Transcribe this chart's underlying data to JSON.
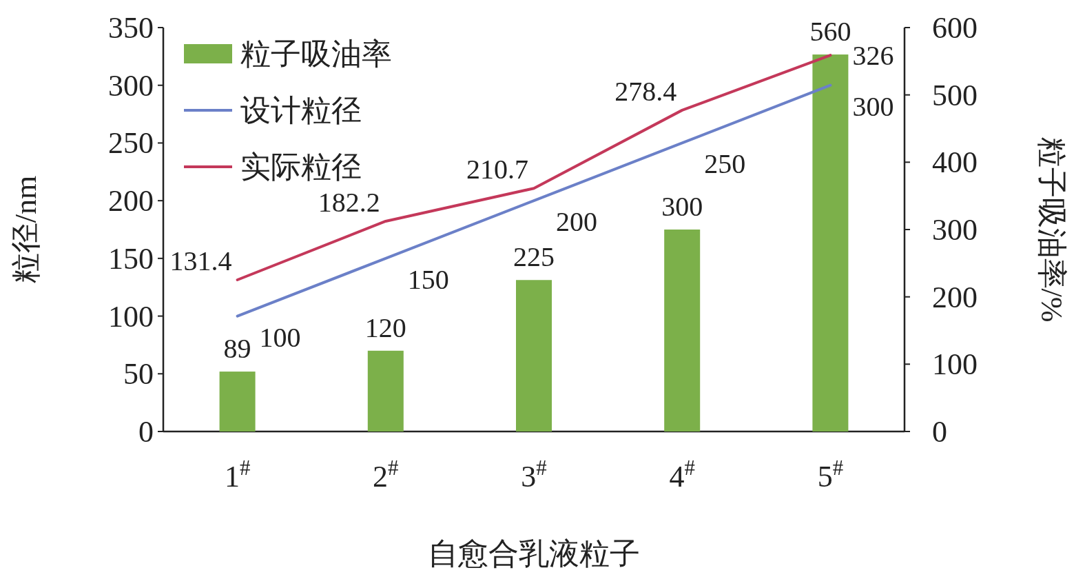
{
  "chart_data": {
    "type": "bar",
    "xlabel": "自愈合乳液粒子",
    "ylabel": "粒径/nm",
    "y2label": "粒子吸油率/%",
    "categories": [
      "1$^{#}$",
      "2$^{#}$",
      "3$^{#}$",
      "4$^{#}$",
      "5$^{#}$"
    ],
    "series": [
      {
        "name": "粒子吸油率",
        "axis": "y2",
        "color": "#7cb04a",
        "values": [
          89,
          120,
          225,
          300,
          560
        ]
      },
      {
        "name": "设计粒径",
        "type": "line",
        "color": "#6b80c8",
        "values": [
          100,
          150,
          200,
          250,
          300
        ]
      },
      {
        "name": "实际粒径",
        "type": "line",
        "color": "#c4385a",
        "values": [
          131.4,
          182.2,
          210.7,
          278.4,
          326
        ]
      }
    ],
    "ylim": [
      0,
      350
    ],
    "yticks": [
      0,
      50,
      100,
      150,
      200,
      250,
      300,
      350
    ],
    "y2lim": [
      0,
      600
    ],
    "y2ticks": [
      0,
      100,
      200,
      300,
      400,
      500,
      600
    ],
    "data_labels": true,
    "legend": "top left",
    "grid": false
  }
}
